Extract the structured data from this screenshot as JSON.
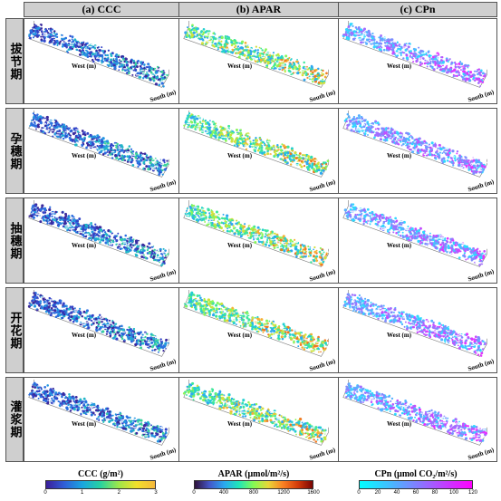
{
  "columns": [
    "(a) CCC",
    "(b) APAR",
    "(c) CPn"
  ],
  "rows": [
    "拔节期",
    "孕穗期",
    "抽穗期",
    "开花期",
    "灌浆期"
  ],
  "axis_labels": {
    "west": "West (m)",
    "south": "South (m)"
  },
  "colorbars": [
    {
      "title": "CCC (g/m²)",
      "ticks": [
        "0",
        "1",
        "2",
        "3"
      ],
      "colors": [
        "#3b1e9a",
        "#2f5fd8",
        "#1aa6e0",
        "#28d2a0",
        "#9ee84a",
        "#f2e02a",
        "#f6b83a"
      ]
    },
    {
      "title": "APAR (μmol/m²/s)",
      "ticks": [
        "0",
        "400",
        "800",
        "1200",
        "1600"
      ],
      "colors": [
        "#30123b",
        "#4457c9",
        "#2aa8f0",
        "#20e6b8",
        "#86fb52",
        "#e9d538",
        "#fb8022",
        "#d33b0a",
        "#7a0403"
      ]
    },
    {
      "title": "CPn (μmol CO₂/m²/s)",
      "ticks": [
        "0",
        "20",
        "40",
        "60",
        "80",
        "100",
        "120"
      ],
      "colors": [
        "#00ffff",
        "#3fc0ff",
        "#7f80ff",
        "#bf40ff",
        "#ff00ff"
      ]
    }
  ]
}
